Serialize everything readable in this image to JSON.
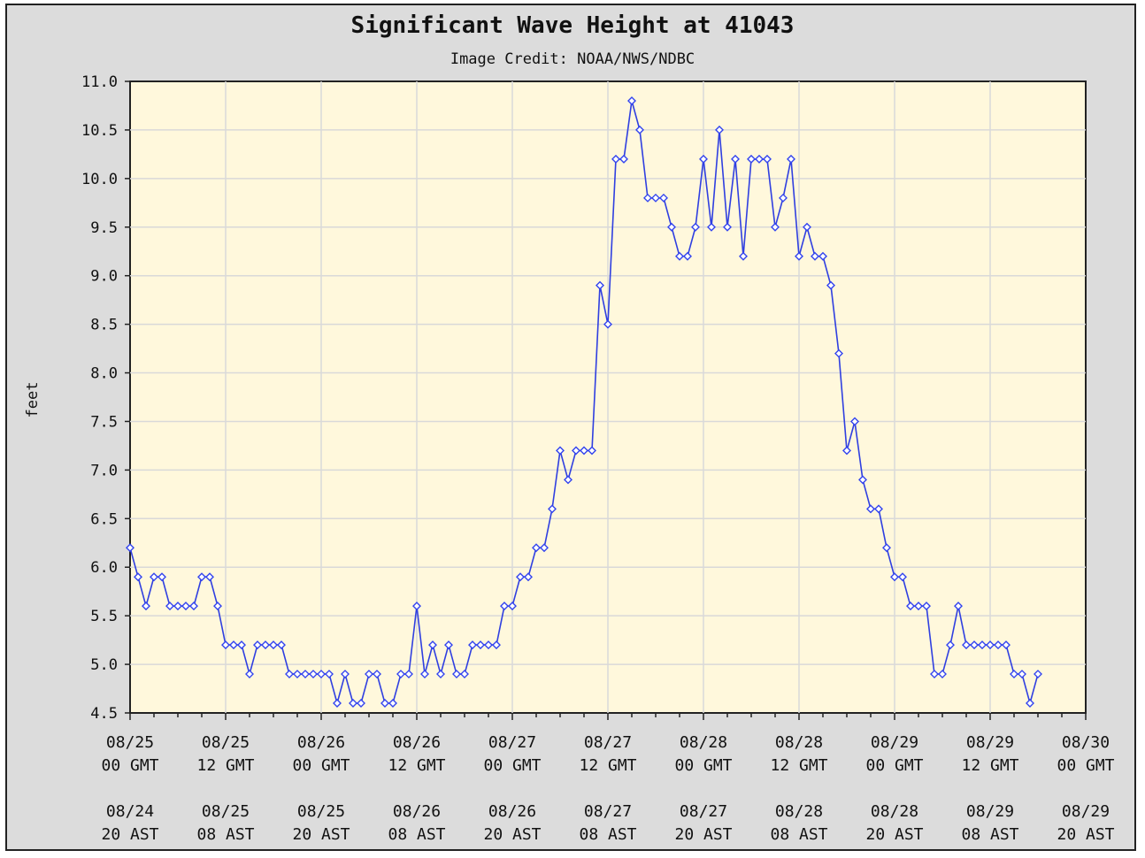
{
  "chart_data": {
    "type": "line",
    "title": "Significant Wave Height at 41043",
    "subtitle": "Image Credit: NOAA/NWS/NDBC",
    "xlabel": "",
    "ylabel": "feet",
    "ylim": [
      4.5,
      11.0
    ],
    "xlim_hours": [
      0,
      120
    ],
    "grid": true,
    "colors": {
      "plot_bg": "#fff8dc",
      "frame_bg": "#dcdcdc",
      "grid": "#d9d9d9",
      "line": "#2f3fe0",
      "marker": "#3344ee"
    },
    "yticks": [
      "4.5",
      "5.0",
      "5.5",
      "6.0",
      "6.5",
      "7.0",
      "7.5",
      "8.0",
      "8.5",
      "9.0",
      "9.5",
      "10.0",
      "10.5",
      "11.0"
    ],
    "xticks_gmt": [
      {
        "d": "08/25",
        "t": "00 GMT"
      },
      {
        "d": "08/25",
        "t": "12 GMT"
      },
      {
        "d": "08/26",
        "t": "00 GMT"
      },
      {
        "d": "08/26",
        "t": "12 GMT"
      },
      {
        "d": "08/27",
        "t": "00 GMT"
      },
      {
        "d": "08/27",
        "t": "12 GMT"
      },
      {
        "d": "08/28",
        "t": "00 GMT"
      },
      {
        "d": "08/28",
        "t": "12 GMT"
      },
      {
        "d": "08/29",
        "t": "00 GMT"
      },
      {
        "d": "08/29",
        "t": "12 GMT"
      },
      {
        "d": "08/30",
        "t": "00 GMT"
      }
    ],
    "xticks_ast": [
      {
        "d": "08/24",
        "t": "20 AST"
      },
      {
        "d": "08/25",
        "t": "08 AST"
      },
      {
        "d": "08/25",
        "t": "20 AST"
      },
      {
        "d": "08/26",
        "t": "08 AST"
      },
      {
        "d": "08/26",
        "t": "20 AST"
      },
      {
        "d": "08/27",
        "t": "08 AST"
      },
      {
        "d": "08/27",
        "t": "20 AST"
      },
      {
        "d": "08/28",
        "t": "08 AST"
      },
      {
        "d": "08/28",
        "t": "20 AST"
      },
      {
        "d": "08/29",
        "t": "08 AST"
      },
      {
        "d": "08/29",
        "t": "20 AST"
      }
    ],
    "series": [
      {
        "x": [
          0,
          1,
          2,
          3,
          4,
          5,
          6,
          7,
          8,
          9,
          10,
          11,
          12,
          13,
          14,
          15,
          16,
          17,
          18,
          19,
          20,
          21,
          22,
          23,
          24,
          25,
          26,
          27,
          28,
          29,
          30,
          31,
          32,
          33,
          34,
          35,
          36,
          37,
          38,
          39,
          40,
          41,
          42,
          43,
          44,
          45,
          46,
          47,
          48,
          49,
          50,
          51,
          52,
          53,
          54,
          55,
          56,
          57,
          58,
          59,
          60,
          61,
          62,
          63,
          64,
          65,
          66,
          67,
          68,
          69,
          70,
          71,
          72,
          73,
          74,
          75,
          76,
          77,
          78,
          79,
          80,
          81,
          82,
          83,
          84,
          85,
          86,
          87,
          88,
          89,
          90,
          91,
          92,
          93,
          94,
          95,
          96,
          97,
          98,
          99,
          100,
          101,
          102,
          103,
          104,
          105,
          106,
          107,
          108,
          109,
          110,
          111,
          112,
          113,
          114
        ],
        "y": [
          6.2,
          5.9,
          5.6,
          5.9,
          5.9,
          5.6,
          5.6,
          5.6,
          5.6,
          5.9,
          5.9,
          5.6,
          5.2,
          5.2,
          5.2,
          4.9,
          5.2,
          5.2,
          5.2,
          5.2,
          4.9,
          4.9,
          4.9,
          4.9,
          4.9,
          4.9,
          4.6,
          4.9,
          4.6,
          4.6,
          4.9,
          4.9,
          4.6,
          4.6,
          4.9,
          4.9,
          5.6,
          4.9,
          5.2,
          4.9,
          5.2,
          4.9,
          4.9,
          5.2,
          5.2,
          5.2,
          5.2,
          5.6,
          5.6,
          5.9,
          5.9,
          6.2,
          6.2,
          6.6,
          7.2,
          6.9,
          7.2,
          7.2,
          7.2,
          8.9,
          8.5,
          10.2,
          10.2,
          10.8,
          10.5,
          9.8,
          9.8,
          9.8,
          9.5,
          9.2,
          9.2,
          9.5,
          10.2,
          9.5,
          10.5,
          9.5,
          10.2,
          9.2,
          10.2,
          10.2,
          10.2,
          9.5,
          9.8,
          10.2,
          9.2,
          9.5,
          9.2,
          9.2,
          8.9,
          8.2,
          7.2,
          7.5,
          6.9,
          6.6,
          6.6,
          6.2,
          5.9,
          5.9,
          5.6,
          5.6,
          5.6,
          4.9,
          4.9,
          5.2,
          5.6,
          5.2,
          5.2,
          5.2,
          5.2,
          5.2,
          5.2,
          4.9,
          4.9,
          4.6,
          4.9
        ]
      }
    ]
  }
}
